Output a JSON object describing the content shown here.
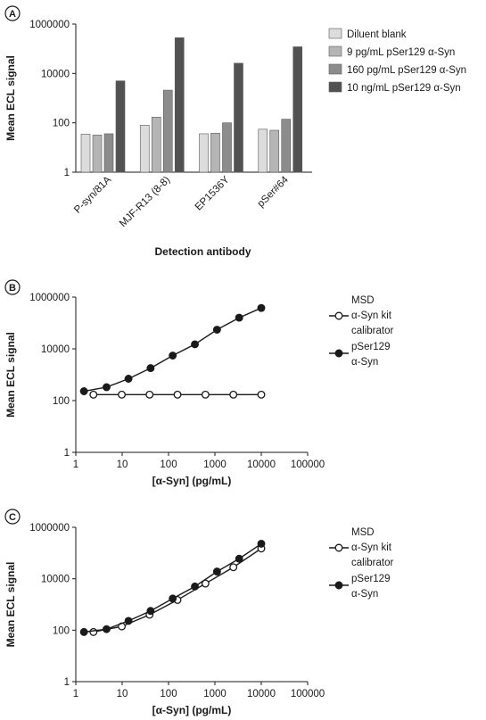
{
  "chart_data": [
    {
      "panel": "A",
      "type": "bar",
      "ylabel": "Mean ECL signal",
      "xlabel": "Detection antibody",
      "yscale": "log",
      "ylim": [
        1,
        1000000
      ],
      "yticks": [
        "1",
        "100",
        "10000",
        "1000000"
      ],
      "categories": [
        "P-syn/81A",
        "MJF-R13 (8-8)",
        "EP1536Y",
        "pSer#64"
      ],
      "series": [
        {
          "name": "Diluent blank",
          "color": "#dcdcdc",
          "values": [
            35,
            80,
            36,
            55
          ]
        },
        {
          "name": "9 pg/mL pSer129 α-Syn",
          "color": "#b5b5b5",
          "values": [
            32,
            170,
            38,
            50
          ]
        },
        {
          "name": "160 pg/mL pSer129 α-Syn",
          "color": "#8c8c8c",
          "values": [
            36,
            2100,
            100,
            140
          ]
        },
        {
          "name": "10 ng/mL pSer129 α-Syn",
          "color": "#525252",
          "values": [
            5000,
            280000,
            26000,
            120000
          ]
        }
      ]
    },
    {
      "panel": "B",
      "type": "line",
      "ylabel": "Mean ECL signal",
      "xlabel": "[α-Syn] (pg/mL)",
      "xscale": "log",
      "yscale": "log",
      "xlim": [
        1,
        100000
      ],
      "ylim": [
        1,
        1000000
      ],
      "xticks": [
        "1",
        "10",
        "100",
        "1000",
        "10000",
        "100000"
      ],
      "yticks": [
        "1",
        "100",
        "10000",
        "1000000"
      ],
      "series": [
        {
          "name": "MSD α-Syn kit calibrator",
          "marker": "open",
          "x": [
            2.4,
            9.8,
            39,
            156,
            625,
            2500,
            10000
          ],
          "y": [
            170,
            170,
            170,
            170,
            170,
            170,
            170
          ]
        },
        {
          "name": "pSer129 α-Syn",
          "marker": "filled",
          "x": [
            1.5,
            4.6,
            13.7,
            41,
            123,
            370,
            1111,
            3333,
            10000
          ],
          "y": [
            230,
            330,
            700,
            1800,
            5500,
            15000,
            55000,
            160000,
            380000
          ]
        }
      ],
      "legend": [
        "MSD",
        "α-Syn kit",
        "calibrator",
        "pSer129",
        "α-Syn"
      ]
    },
    {
      "panel": "C",
      "type": "line",
      "ylabel": "Mean ECL signal",
      "xlabel": "[α-Syn] (pg/mL)",
      "xscale": "log",
      "yscale": "log",
      "xlim": [
        1,
        100000
      ],
      "ylim": [
        1,
        1000000
      ],
      "xticks": [
        "1",
        "10",
        "100",
        "1000",
        "10000",
        "100000"
      ],
      "yticks": [
        "1",
        "100",
        "10000",
        "1000000"
      ],
      "series": [
        {
          "name": "MSD α-Syn kit calibrator",
          "marker": "open",
          "x": [
            2.4,
            9.8,
            39,
            156,
            625,
            2500,
            10000
          ],
          "y": [
            85,
            140,
            400,
            1500,
            6500,
            28000,
            150000
          ]
        },
        {
          "name": "pSer129 α-Syn",
          "marker": "filled",
          "x": [
            1.5,
            4.6,
            13.7,
            41,
            123,
            370,
            1111,
            3333,
            10000
          ],
          "y": [
            85,
            110,
            230,
            560,
            1700,
            5000,
            19000,
            60000,
            230000
          ]
        }
      ],
      "legend": [
        "MSD",
        "α-Syn kit",
        "calibrator",
        "pSer129",
        "α-Syn"
      ]
    }
  ],
  "panel_labels": [
    "A",
    "B",
    "C"
  ]
}
